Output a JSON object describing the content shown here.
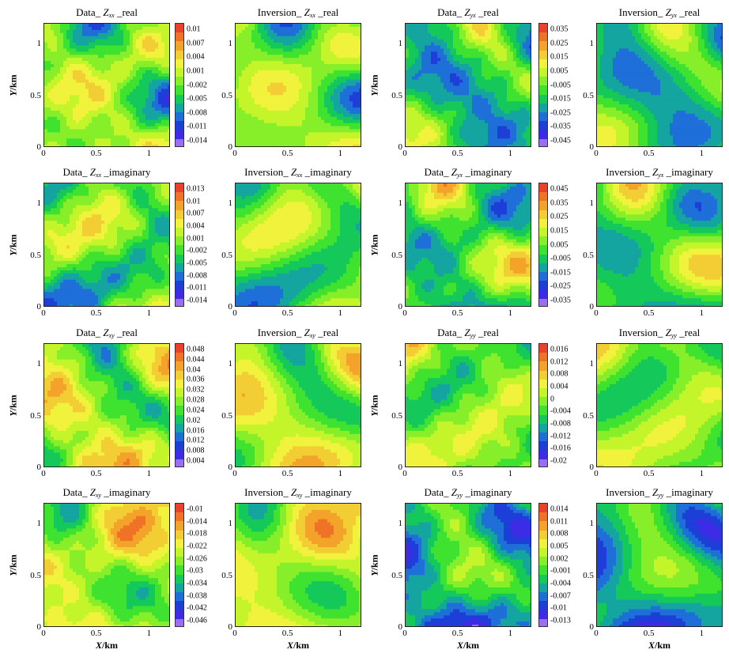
{
  "chart_data": {
    "type": "heatmap",
    "axis": {
      "xlabel_var": "X",
      "xlabel_unit": "/km",
      "ylabel_var": "Y",
      "ylabel_unit": "/km",
      "xticks": [
        "0",
        "0.5",
        "1"
      ],
      "yticks": [
        "0",
        "0.5",
        "1"
      ],
      "xlim": [
        0,
        1.2
      ],
      "ylim": [
        0,
        1.2
      ]
    },
    "panels": [
      {
        "title_prefix": "Data_ ",
        "component_var": "Z",
        "component_sub": "xx",
        "title_suffix": " _real",
        "colorbar": "cb_xx_real"
      },
      {
        "title_prefix": "Inversion_ ",
        "component_var": "Z",
        "component_sub": "xx",
        "title_suffix": " _real",
        "colorbar": "cb_xx_real"
      },
      {
        "title_prefix": "Data_ ",
        "component_var": "Z",
        "component_sub": "yx",
        "title_suffix": " _real",
        "colorbar": "cb_yx_real"
      },
      {
        "title_prefix": "Inversion_ ",
        "component_var": "Z",
        "component_sub": "yx",
        "title_suffix": " _real",
        "colorbar": "cb_yx_real"
      },
      {
        "title_prefix": "Data_ ",
        "component_var": "Z",
        "component_sub": "xx",
        "title_suffix": " _imaginary",
        "colorbar": "cb_xx_imag"
      },
      {
        "title_prefix": "Inversion_ ",
        "component_var": "Z",
        "component_sub": "xx",
        "title_suffix": " _imaginary",
        "colorbar": "cb_xx_imag"
      },
      {
        "title_prefix": "Data_ ",
        "component_var": "Z",
        "component_sub": "yx",
        "title_suffix": " _imaginary",
        "colorbar": "cb_yx_imag"
      },
      {
        "title_prefix": "Inversion_ ",
        "component_var": "Z",
        "component_sub": "yx",
        "title_suffix": " _imaginary",
        "colorbar": "cb_yx_imag"
      },
      {
        "title_prefix": "Data_ ",
        "component_var": "Z",
        "component_sub": "xy",
        "title_suffix": " _real",
        "colorbar": "cb_xy_real"
      },
      {
        "title_prefix": "Inversion_ ",
        "component_var": "Z",
        "component_sub": "xy",
        "title_suffix": " _real",
        "colorbar": "cb_xy_real"
      },
      {
        "title_prefix": "Data_ ",
        "component_var": "Z",
        "component_sub": "yy",
        "title_suffix": " _real",
        "colorbar": "cb_yy_real"
      },
      {
        "title_prefix": "Inversion_ ",
        "component_var": "Z",
        "component_sub": "yy",
        "title_suffix": " _real",
        "colorbar": "cb_yy_real"
      },
      {
        "title_prefix": "Data_ ",
        "component_var": "Z",
        "component_sub": "xy",
        "title_suffix": " _imaginary",
        "colorbar": "cb_xy_imag"
      },
      {
        "title_prefix": "Inversion_ ",
        "component_var": "Z",
        "component_sub": "xy",
        "title_suffix": " _imaginary",
        "colorbar": "cb_xy_imag"
      },
      {
        "title_prefix": "Data_ ",
        "component_var": "Z",
        "component_sub": "yy",
        "title_suffix": " _imaginary",
        "colorbar": "cb_yy_imag"
      },
      {
        "title_prefix": "Inversion_ ",
        "component_var": "Z",
        "component_sub": "yy",
        "title_suffix": " _imaginary",
        "colorbar": "cb_yy_imag"
      }
    ],
    "colorbars": {
      "cb_xx_real": [
        "0.01",
        "0.007",
        "0.004",
        "0.001",
        "-0.002",
        "-0.005",
        "-0.008",
        "-0.011",
        "-0.014"
      ],
      "cb_yx_real": [
        "0.035",
        "0.025",
        "0.015",
        "0.005",
        "-0.005",
        "-0.015",
        "-0.025",
        "-0.035",
        "-0.045"
      ],
      "cb_xx_imag": [
        "0.013",
        "0.01",
        "0.007",
        "0.004",
        "0.001",
        "-0.002",
        "-0.005",
        "-0.008",
        "-0.011",
        "-0.014"
      ],
      "cb_yx_imag": [
        "0.045",
        "0.035",
        "0.025",
        "0.015",
        "0.005",
        "-0.005",
        "-0.015",
        "-0.025",
        "-0.035"
      ],
      "cb_xy_real": [
        "0.048",
        "0.044",
        "0.04",
        "0.036",
        "0.032",
        "0.028",
        "0.024",
        "0.02",
        "0.016",
        "0.012",
        "0.008",
        "0.004"
      ],
      "cb_yy_real": [
        "0.016",
        "0.012",
        "0.008",
        "0.004",
        "0",
        "-0.004",
        "-0.008",
        "-0.012",
        "-0.016",
        "-0.02"
      ],
      "cb_xy_imag": [
        "-0.01",
        "-0.014",
        "-0.018",
        "-0.022",
        "-0.026",
        "-0.03",
        "-0.034",
        "-0.038",
        "-0.042",
        "-0.046"
      ],
      "cb_yy_imag": [
        "0.014",
        "0.011",
        "0.008",
        "0.005",
        "0.002",
        "-0.001",
        "-0.004",
        "-0.007",
        "-0.01",
        "-0.013"
      ]
    }
  }
}
